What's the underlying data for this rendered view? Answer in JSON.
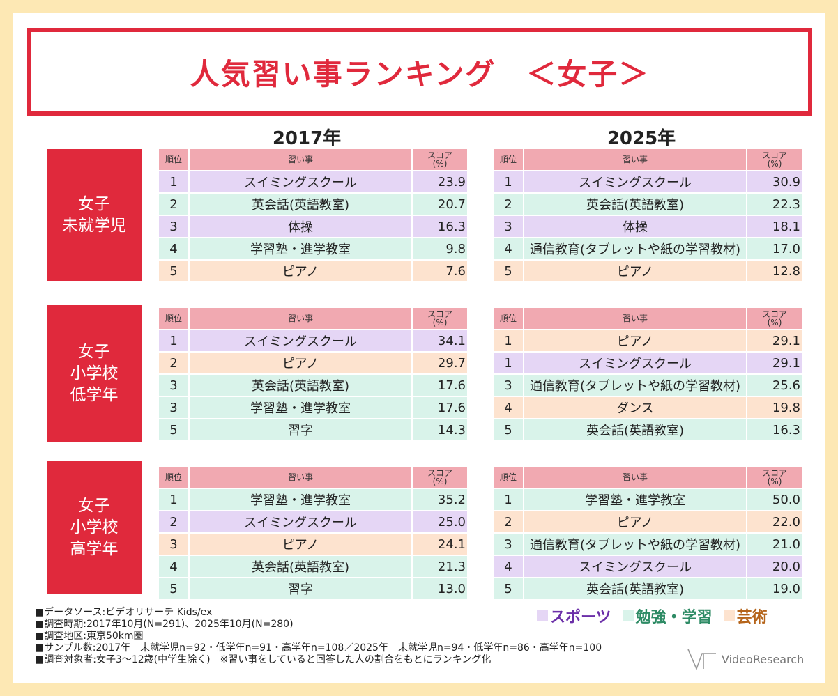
{
  "title": "人気習い事ランキング　＜女子＞",
  "years": [
    "2017年",
    "2025年"
  ],
  "colors": {
    "accent": "#e0293c",
    "sports": "#e5d6f5",
    "study": "#d9f3ea",
    "arts": "#fde3cf",
    "header": "#f1a9b1"
  },
  "headers": {
    "rank": "順位",
    "name": "習い事",
    "score_line1": "スコア",
    "score_line2": "(%)"
  },
  "groups": [
    {
      "label": [
        "女子",
        "未就学児"
      ],
      "y2017": [
        {
          "rank": "1",
          "name": "スイミングスクール",
          "score": "23.9",
          "cat": "sports"
        },
        {
          "rank": "2",
          "name": "英会話(英語教室)",
          "score": "20.7",
          "cat": "study"
        },
        {
          "rank": "3",
          "name": "体操",
          "score": "16.3",
          "cat": "sports"
        },
        {
          "rank": "4",
          "name": "学習塾・進学教室",
          "score": "9.8",
          "cat": "study"
        },
        {
          "rank": "5",
          "name": "ピアノ",
          "score": "7.6",
          "cat": "arts"
        }
      ],
      "y2025": [
        {
          "rank": "1",
          "name": "スイミングスクール",
          "score": "30.9",
          "cat": "sports"
        },
        {
          "rank": "2",
          "name": "英会話(英語教室)",
          "score": "22.3",
          "cat": "study"
        },
        {
          "rank": "3",
          "name": "体操",
          "score": "18.1",
          "cat": "sports"
        },
        {
          "rank": "4",
          "name": "通信教育(タブレットや紙の学習教材)",
          "score": "17.0",
          "cat": "study"
        },
        {
          "rank": "5",
          "name": "ピアノ",
          "score": "12.8",
          "cat": "arts"
        }
      ]
    },
    {
      "label": [
        "女子",
        "小学校",
        "低学年"
      ],
      "y2017": [
        {
          "rank": "1",
          "name": "スイミングスクール",
          "score": "34.1",
          "cat": "sports"
        },
        {
          "rank": "2",
          "name": "ピアノ",
          "score": "29.7",
          "cat": "arts"
        },
        {
          "rank": "3",
          "name": "英会話(英語教室)",
          "score": "17.6",
          "cat": "study"
        },
        {
          "rank": "3",
          "name": "学習塾・進学教室",
          "score": "17.6",
          "cat": "study"
        },
        {
          "rank": "5",
          "name": "習字",
          "score": "14.3",
          "cat": "study"
        }
      ],
      "y2025": [
        {
          "rank": "1",
          "name": "ピアノ",
          "score": "29.1",
          "cat": "arts"
        },
        {
          "rank": "1",
          "name": "スイミングスクール",
          "score": "29.1",
          "cat": "sports"
        },
        {
          "rank": "3",
          "name": "通信教育(タブレットや紙の学習教材)",
          "score": "25.6",
          "cat": "study"
        },
        {
          "rank": "4",
          "name": "ダンス",
          "score": "19.8",
          "cat": "arts"
        },
        {
          "rank": "5",
          "name": "英会話(英語教室)",
          "score": "16.3",
          "cat": "study"
        }
      ]
    },
    {
      "label": [
        "女子",
        "小学校",
        "高学年"
      ],
      "y2017": [
        {
          "rank": "1",
          "name": "学習塾・進学教室",
          "score": "35.2",
          "cat": "study"
        },
        {
          "rank": "2",
          "name": "スイミングスクール",
          "score": "25.0",
          "cat": "sports"
        },
        {
          "rank": "3",
          "name": "ピアノ",
          "score": "24.1",
          "cat": "arts"
        },
        {
          "rank": "4",
          "name": "英会話(英語教室)",
          "score": "21.3",
          "cat": "study"
        },
        {
          "rank": "5",
          "name": "習字",
          "score": "13.0",
          "cat": "study"
        }
      ],
      "y2025": [
        {
          "rank": "1",
          "name": "学習塾・進学教室",
          "score": "50.0",
          "cat": "study"
        },
        {
          "rank": "2",
          "name": "ピアノ",
          "score": "22.0",
          "cat": "arts"
        },
        {
          "rank": "3",
          "name": "通信教育(タブレットや紙の学習教材)",
          "score": "21.0",
          "cat": "study"
        },
        {
          "rank": "4",
          "name": "スイミングスクール",
          "score": "20.0",
          "cat": "sports"
        },
        {
          "rank": "5",
          "name": "英会話(英語教室)",
          "score": "19.0",
          "cat": "study"
        }
      ]
    }
  ],
  "notes": [
    "■データソース:ビデオリサーチ Kids/ex",
    "■調査時期:2017年10月(N=291)、2025年10月(N=280)",
    "■調査地区:東京50km圏",
    "■サンプル数:2017年　未就学児n=92・低学年n=91・高学年n=108／2025年　未就学児n=94・低学年n=86・高学年n=100",
    "■調査対象者:女子3～12歳(中学生除く)　※習い事をしていると回答した人の割合をもとにランキング化"
  ],
  "legend": [
    {
      "label": "スポーツ",
      "cat": "sports"
    },
    {
      "label": "勉強・学習",
      "cat": "study"
    },
    {
      "label": "芸術",
      "cat": "arts"
    }
  ],
  "logo_text": "VideoResearch"
}
